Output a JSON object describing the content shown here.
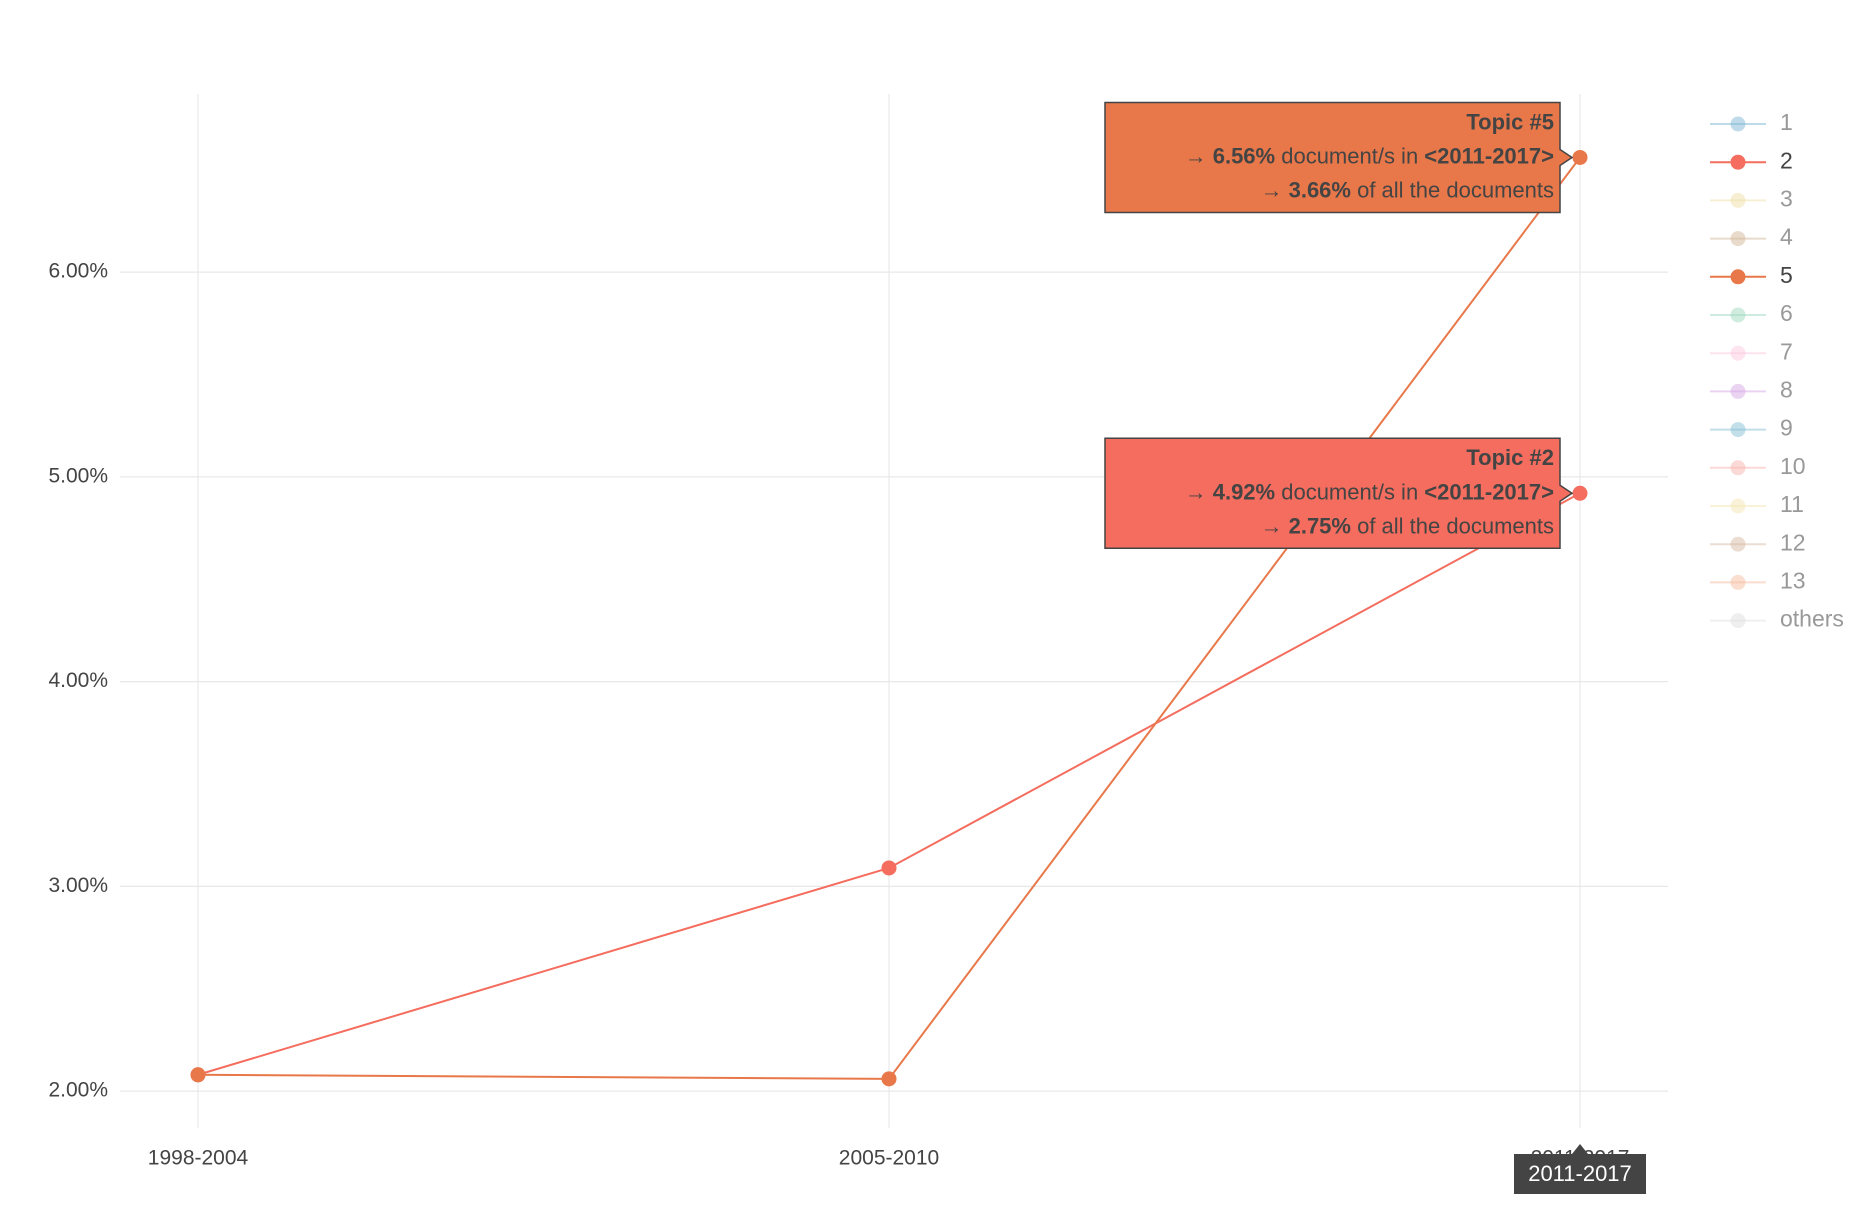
{
  "chart_data": {
    "type": "line",
    "categories": [
      "1998-2004",
      "2005-2010",
      "2011-2017"
    ],
    "ylim": [
      1.82,
      6.87
    ],
    "yticks": [
      {
        "value": 2,
        "label": "2.00%"
      },
      {
        "value": 3,
        "label": "3.00%"
      },
      {
        "value": 4,
        "label": "4.00%"
      },
      {
        "value": 5,
        "label": "5.00%"
      },
      {
        "value": 6,
        "label": "6.00%"
      }
    ],
    "grid": true,
    "legend": "right",
    "series": [
      {
        "name": "1",
        "color": "#7fb8d4",
        "visible": false,
        "values": [
          null,
          null,
          null
        ]
      },
      {
        "name": "2",
        "color": "#f46d5e",
        "visible": true,
        "values": [
          2.08,
          3.09,
          4.92
        ]
      },
      {
        "name": "3",
        "color": "#f0e0a8",
        "visible": false,
        "values": [
          null,
          null,
          null
        ]
      },
      {
        "name": "4",
        "color": "#d4b89a",
        "visible": false,
        "values": [
          null,
          null,
          null
        ]
      },
      {
        "name": "5",
        "color": "#e8784a",
        "visible": true,
        "values": [
          2.08,
          2.06,
          6.56
        ]
      },
      {
        "name": "6",
        "color": "#9fd9c0",
        "visible": false,
        "values": [
          null,
          null,
          null
        ]
      },
      {
        "name": "7",
        "color": "#fbc9df",
        "visible": false,
        "values": [
          null,
          null,
          null
        ]
      },
      {
        "name": "8",
        "color": "#d6a9e6",
        "visible": false,
        "values": [
          null,
          null,
          null
        ]
      },
      {
        "name": "9",
        "color": "#88bfd4",
        "visible": false,
        "values": [
          null,
          null,
          null
        ]
      },
      {
        "name": "10",
        "color": "#f8b3ae",
        "visible": false,
        "values": [
          null,
          null,
          null
        ]
      },
      {
        "name": "11",
        "color": "#f4e6b4",
        "visible": false,
        "values": [
          null,
          null,
          null
        ]
      },
      {
        "name": "12",
        "color": "#d8bca6",
        "visible": false,
        "values": [
          null,
          null,
          null
        ]
      },
      {
        "name": "13",
        "color": "#f5bda0",
        "visible": false,
        "values": [
          null,
          null,
          null
        ]
      },
      {
        "name": "others",
        "color": "#e0e0e0",
        "visible": false,
        "values": [
          null,
          null,
          null
        ]
      }
    ],
    "hover_category": 2,
    "hover_labels": [
      {
        "series": 4,
        "title": "Topic #5",
        "lines": [
          [
            "→ ",
            "6.56%",
            " document/s in ",
            "<2011-2017>"
          ],
          [
            "→ ",
            "3.66%",
            " of all the documents"
          ]
        ]
      },
      {
        "series": 1,
        "title": "Topic #2",
        "lines": [
          [
            "→ ",
            "4.92%",
            " document/s in ",
            "<2011-2017>"
          ],
          [
            "→ ",
            "2.75%",
            " of all the documents"
          ]
        ]
      }
    ]
  }
}
